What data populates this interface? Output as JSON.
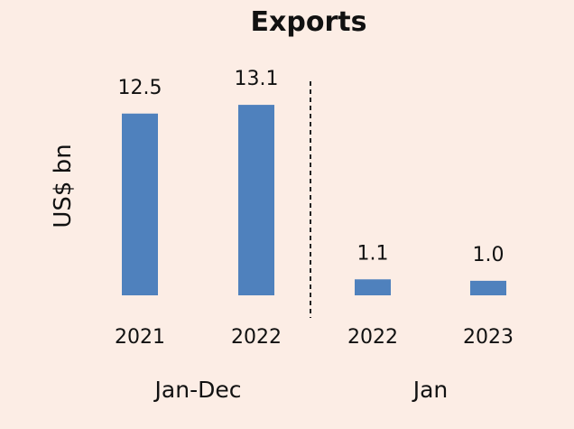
{
  "chart_data": {
    "type": "bar",
    "title": "Exports",
    "xlabel": "",
    "ylabel": "US$ bn",
    "ylim": [
      0,
      14
    ],
    "grid": false,
    "bar_color": "#4f81bd",
    "background_color": "#fcede5",
    "categories": [
      "2021",
      "2022",
      "2022",
      "2023"
    ],
    "values": [
      12.5,
      13.1,
      1.1,
      1.0
    ],
    "data_labels": [
      "12.5",
      "13.1",
      "1.1",
      "1.0"
    ],
    "groups": [
      {
        "label": "Jan-Dec",
        "category_indices": [
          0,
          1
        ]
      },
      {
        "label": "Jan",
        "category_indices": [
          2,
          3
        ]
      }
    ]
  }
}
